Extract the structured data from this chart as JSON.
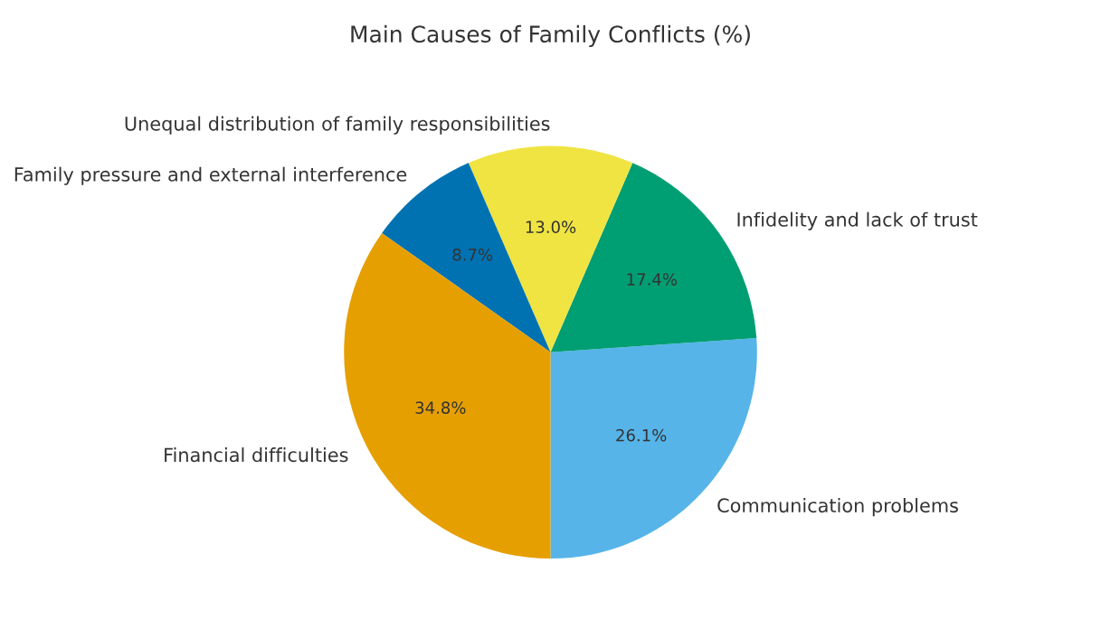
{
  "chart_data": {
    "type": "pie",
    "title": "Main Causes of Family Conflicts (%)",
    "categories": [
      "Communication problems",
      "Infidelity and lack of trust",
      "Unequal distribution of family responsibilities",
      "Family pressure and external interference",
      "Financial difficulties"
    ],
    "values": [
      26.1,
      17.4,
      13.0,
      8.7,
      34.8
    ],
    "value_labels": [
      "26.1%",
      "17.4%",
      "13.0%",
      "8.7%",
      "34.8%"
    ],
    "colors": [
      "#56b4e9",
      "#009e73",
      "#f0e442",
      "#0072b2",
      "#e69f00"
    ],
    "legend": false
  }
}
